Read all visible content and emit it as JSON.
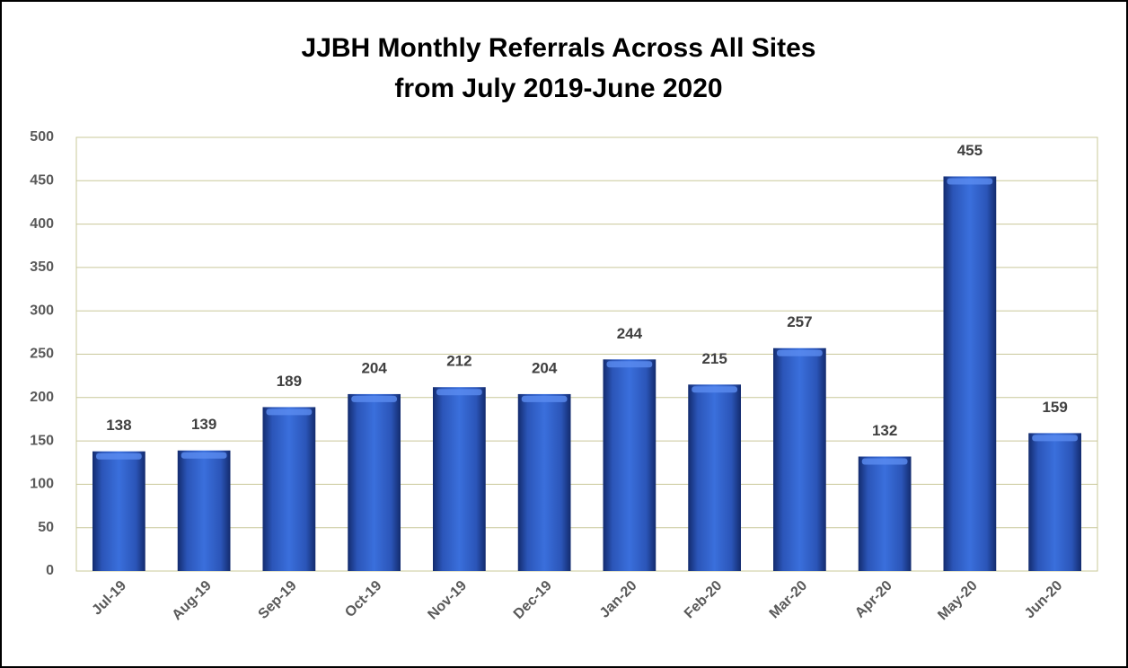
{
  "chart_data": {
    "type": "bar",
    "title": [
      "JJBH Monthly Referrals Across All Sites",
      "from July 2019-June 2020"
    ],
    "categories": [
      "Jul-19",
      "Aug-19",
      "Sep-19",
      "Oct-19",
      "Nov-19",
      "Dec-19",
      "Jan-20",
      "Feb-20",
      "Mar-20",
      "Apr-20",
      "May-20",
      "Jun-20"
    ],
    "values": [
      138,
      139,
      189,
      204,
      212,
      204,
      244,
      215,
      257,
      132,
      455,
      159
    ],
    "color": "#3a6fdc",
    "ylim": [
      0,
      500
    ],
    "yticks": [
      0,
      50,
      100,
      150,
      200,
      250,
      300,
      350,
      400,
      450,
      500
    ],
    "grid": true
  }
}
